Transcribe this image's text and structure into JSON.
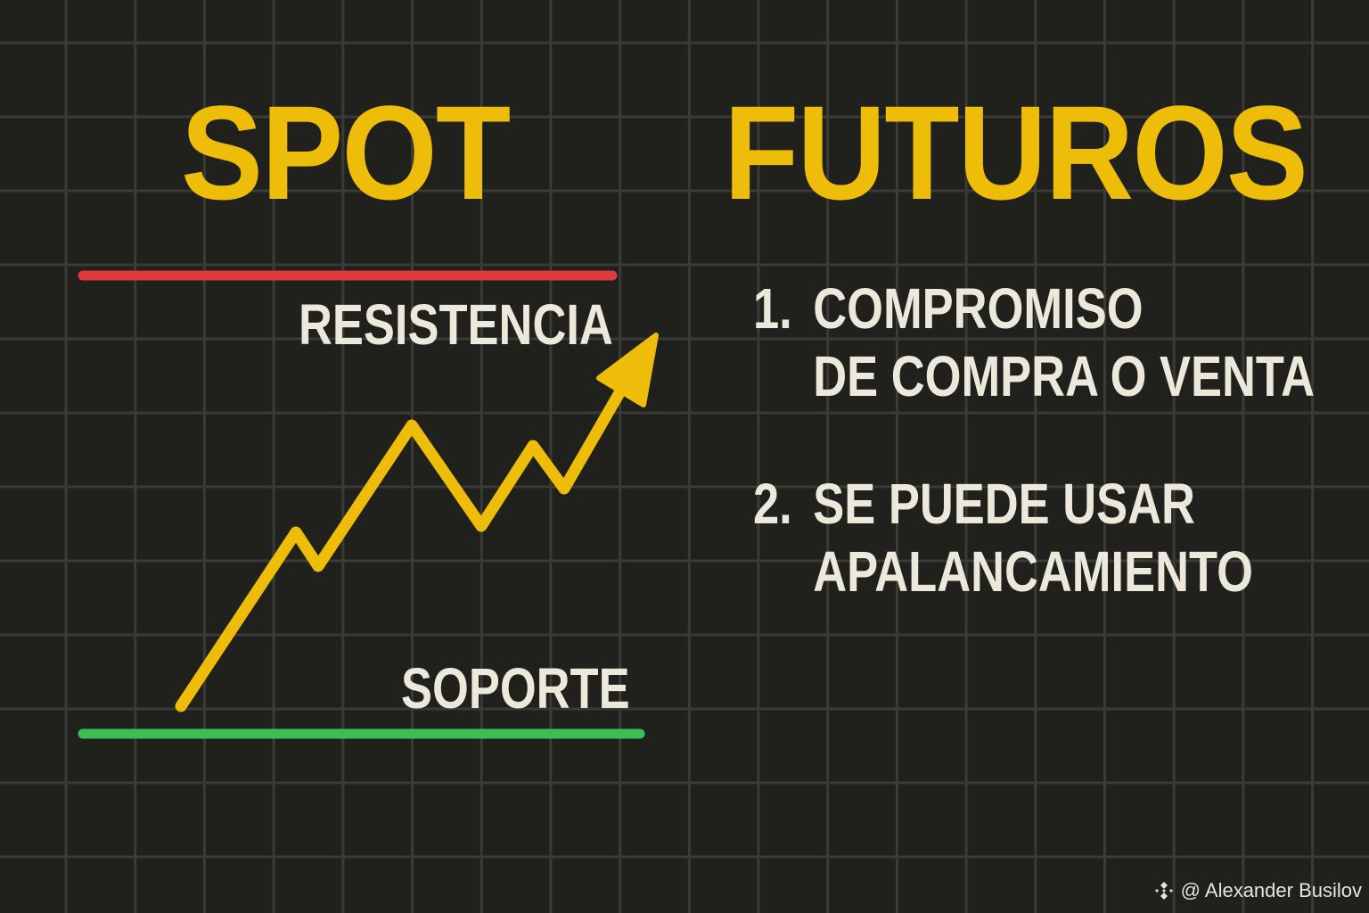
{
  "titles": {
    "left": "SPOT",
    "right": "FUTUROS"
  },
  "chart": {
    "resistance_label": "RESISTENCIA",
    "support_label": "SOPORTE",
    "resistance_color": "#e0393a",
    "support_color": "#3bbf55",
    "line_color": "#eebd0a"
  },
  "list": [
    {
      "number": "1.",
      "line1": "COMPROMISO",
      "line2": "DE COMPRA O VENTA"
    },
    {
      "number": "2.",
      "line1": "SE PUEDE USAR",
      "line2": "APALANCAMIENTO"
    }
  ],
  "watermark": {
    "icon": "binance-logo-icon",
    "text": "@ Alexander Busilov"
  }
}
